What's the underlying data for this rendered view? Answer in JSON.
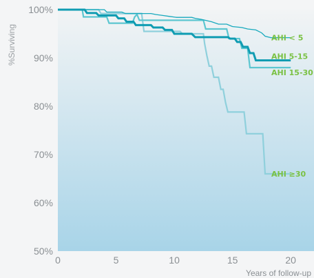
{
  "chart_data": {
    "type": "line",
    "subtype": "kaplan-meier step",
    "title": "",
    "xlabel": "Years of follow-up",
    "ylabel": "%Surviving",
    "xlim": [
      0,
      22
    ],
    "ylim": [
      50,
      100
    ],
    "x_ticks": [
      0,
      5,
      10,
      15,
      20
    ],
    "x_tick_labels": [
      "0",
      "5",
      "10",
      "15",
      "20"
    ],
    "y_ticks": [
      50,
      60,
      70,
      80,
      90,
      100
    ],
    "y_tick_labels": [
      "50%",
      "60%",
      "70%",
      "80%",
      "90%",
      "100%"
    ],
    "grid": false,
    "background_gradient": [
      "#f2f4f5",
      "#a8d4e8"
    ],
    "label_color": "#7ac143",
    "series": [
      {
        "name": "AHI < 5",
        "color": "#17a9bd",
        "line_weight": "thin",
        "points": [
          [
            0,
            100
          ],
          [
            4.0,
            100
          ],
          [
            4.2,
            99.5
          ],
          [
            5.5,
            99.5
          ],
          [
            5.8,
            99.2
          ],
          [
            8.0,
            99.2
          ],
          [
            8.4,
            99.0
          ],
          [
            9.0,
            98.8
          ],
          [
            9.6,
            98.6
          ],
          [
            10.2,
            98.4
          ],
          [
            11.5,
            98.4
          ],
          [
            11.8,
            98.2
          ],
          [
            12.3,
            98.0
          ],
          [
            13.2,
            97.5
          ],
          [
            13.8,
            97.0
          ],
          [
            14.5,
            97.0
          ],
          [
            15.0,
            96.5
          ],
          [
            15.8,
            96.3
          ],
          [
            16.3,
            96.0
          ],
          [
            17.0,
            95.8
          ],
          [
            17.5,
            95.2
          ],
          [
            17.8,
            94.5
          ],
          [
            18.3,
            94.2
          ],
          [
            20.0,
            94.2
          ]
        ]
      },
      {
        "name": "AHI 5-15",
        "color": "#0f9cb2",
        "line_weight": "thick",
        "points": [
          [
            0,
            100
          ],
          [
            2.3,
            100
          ],
          [
            2.5,
            99.3
          ],
          [
            3.3,
            99.3
          ],
          [
            3.5,
            98.8
          ],
          [
            5.0,
            98.8
          ],
          [
            5.2,
            98.2
          ],
          [
            5.7,
            98.2
          ],
          [
            5.9,
            97.5
          ],
          [
            6.5,
            97.5
          ],
          [
            6.7,
            96.8
          ],
          [
            8.0,
            96.8
          ],
          [
            8.2,
            96.3
          ],
          [
            9.0,
            96.3
          ],
          [
            9.2,
            95.8
          ],
          [
            9.8,
            95.8
          ],
          [
            10.0,
            95.0
          ],
          [
            11.5,
            95.0
          ],
          [
            11.8,
            94.3
          ],
          [
            14.6,
            94.3
          ],
          [
            14.8,
            94.0
          ],
          [
            15.2,
            94.0
          ],
          [
            15.4,
            93.3
          ],
          [
            15.7,
            93.3
          ],
          [
            15.9,
            92.3
          ],
          [
            16.3,
            92.3
          ],
          [
            16.5,
            91.0
          ],
          [
            16.8,
            91.0
          ],
          [
            17.0,
            89.5
          ],
          [
            18.3,
            89.5
          ],
          [
            20.0,
            89.5
          ]
        ]
      },
      {
        "name": "AHI 15-30",
        "color": "#5cc6d0",
        "line_weight": "medium",
        "points": [
          [
            0,
            100
          ],
          [
            2.1,
            100
          ],
          [
            2.2,
            98.5
          ],
          [
            4.2,
            98.5
          ],
          [
            4.4,
            97.2
          ],
          [
            6.4,
            97.2
          ],
          [
            6.6,
            98.5
          ],
          [
            6.8,
            99.0
          ],
          [
            7.0,
            97.8
          ],
          [
            12.5,
            97.8
          ],
          [
            12.7,
            96.0
          ],
          [
            14.5,
            96.0
          ],
          [
            14.7,
            94.0
          ],
          [
            15.6,
            94.0
          ],
          [
            15.8,
            92.0
          ],
          [
            16.3,
            92.0
          ],
          [
            16.5,
            88.0
          ],
          [
            18.0,
            88.0
          ],
          [
            20.0,
            88.0
          ]
        ]
      },
      {
        "name": "AHI ≥30",
        "color": "#8fd0dc",
        "line_weight": "medium",
        "points": [
          [
            0,
            100
          ],
          [
            3.5,
            100
          ],
          [
            3.7,
            99.2
          ],
          [
            7.2,
            99.2
          ],
          [
            7.4,
            95.5
          ],
          [
            10.5,
            95.5
          ],
          [
            10.7,
            95.0
          ],
          [
            12.5,
            95.0
          ],
          [
            12.6,
            93.0
          ],
          [
            12.8,
            90.5
          ],
          [
            13.0,
            88.3
          ],
          [
            13.2,
            88.3
          ],
          [
            13.4,
            86.0
          ],
          [
            13.8,
            86.0
          ],
          [
            14.0,
            83.5
          ],
          [
            14.2,
            83.5
          ],
          [
            14.4,
            80.8
          ],
          [
            14.6,
            78.8
          ],
          [
            16.0,
            78.8
          ],
          [
            16.2,
            74.3
          ],
          [
            17.6,
            74.3
          ],
          [
            17.8,
            66.0
          ],
          [
            20.0,
            66.0
          ]
        ]
      }
    ]
  }
}
